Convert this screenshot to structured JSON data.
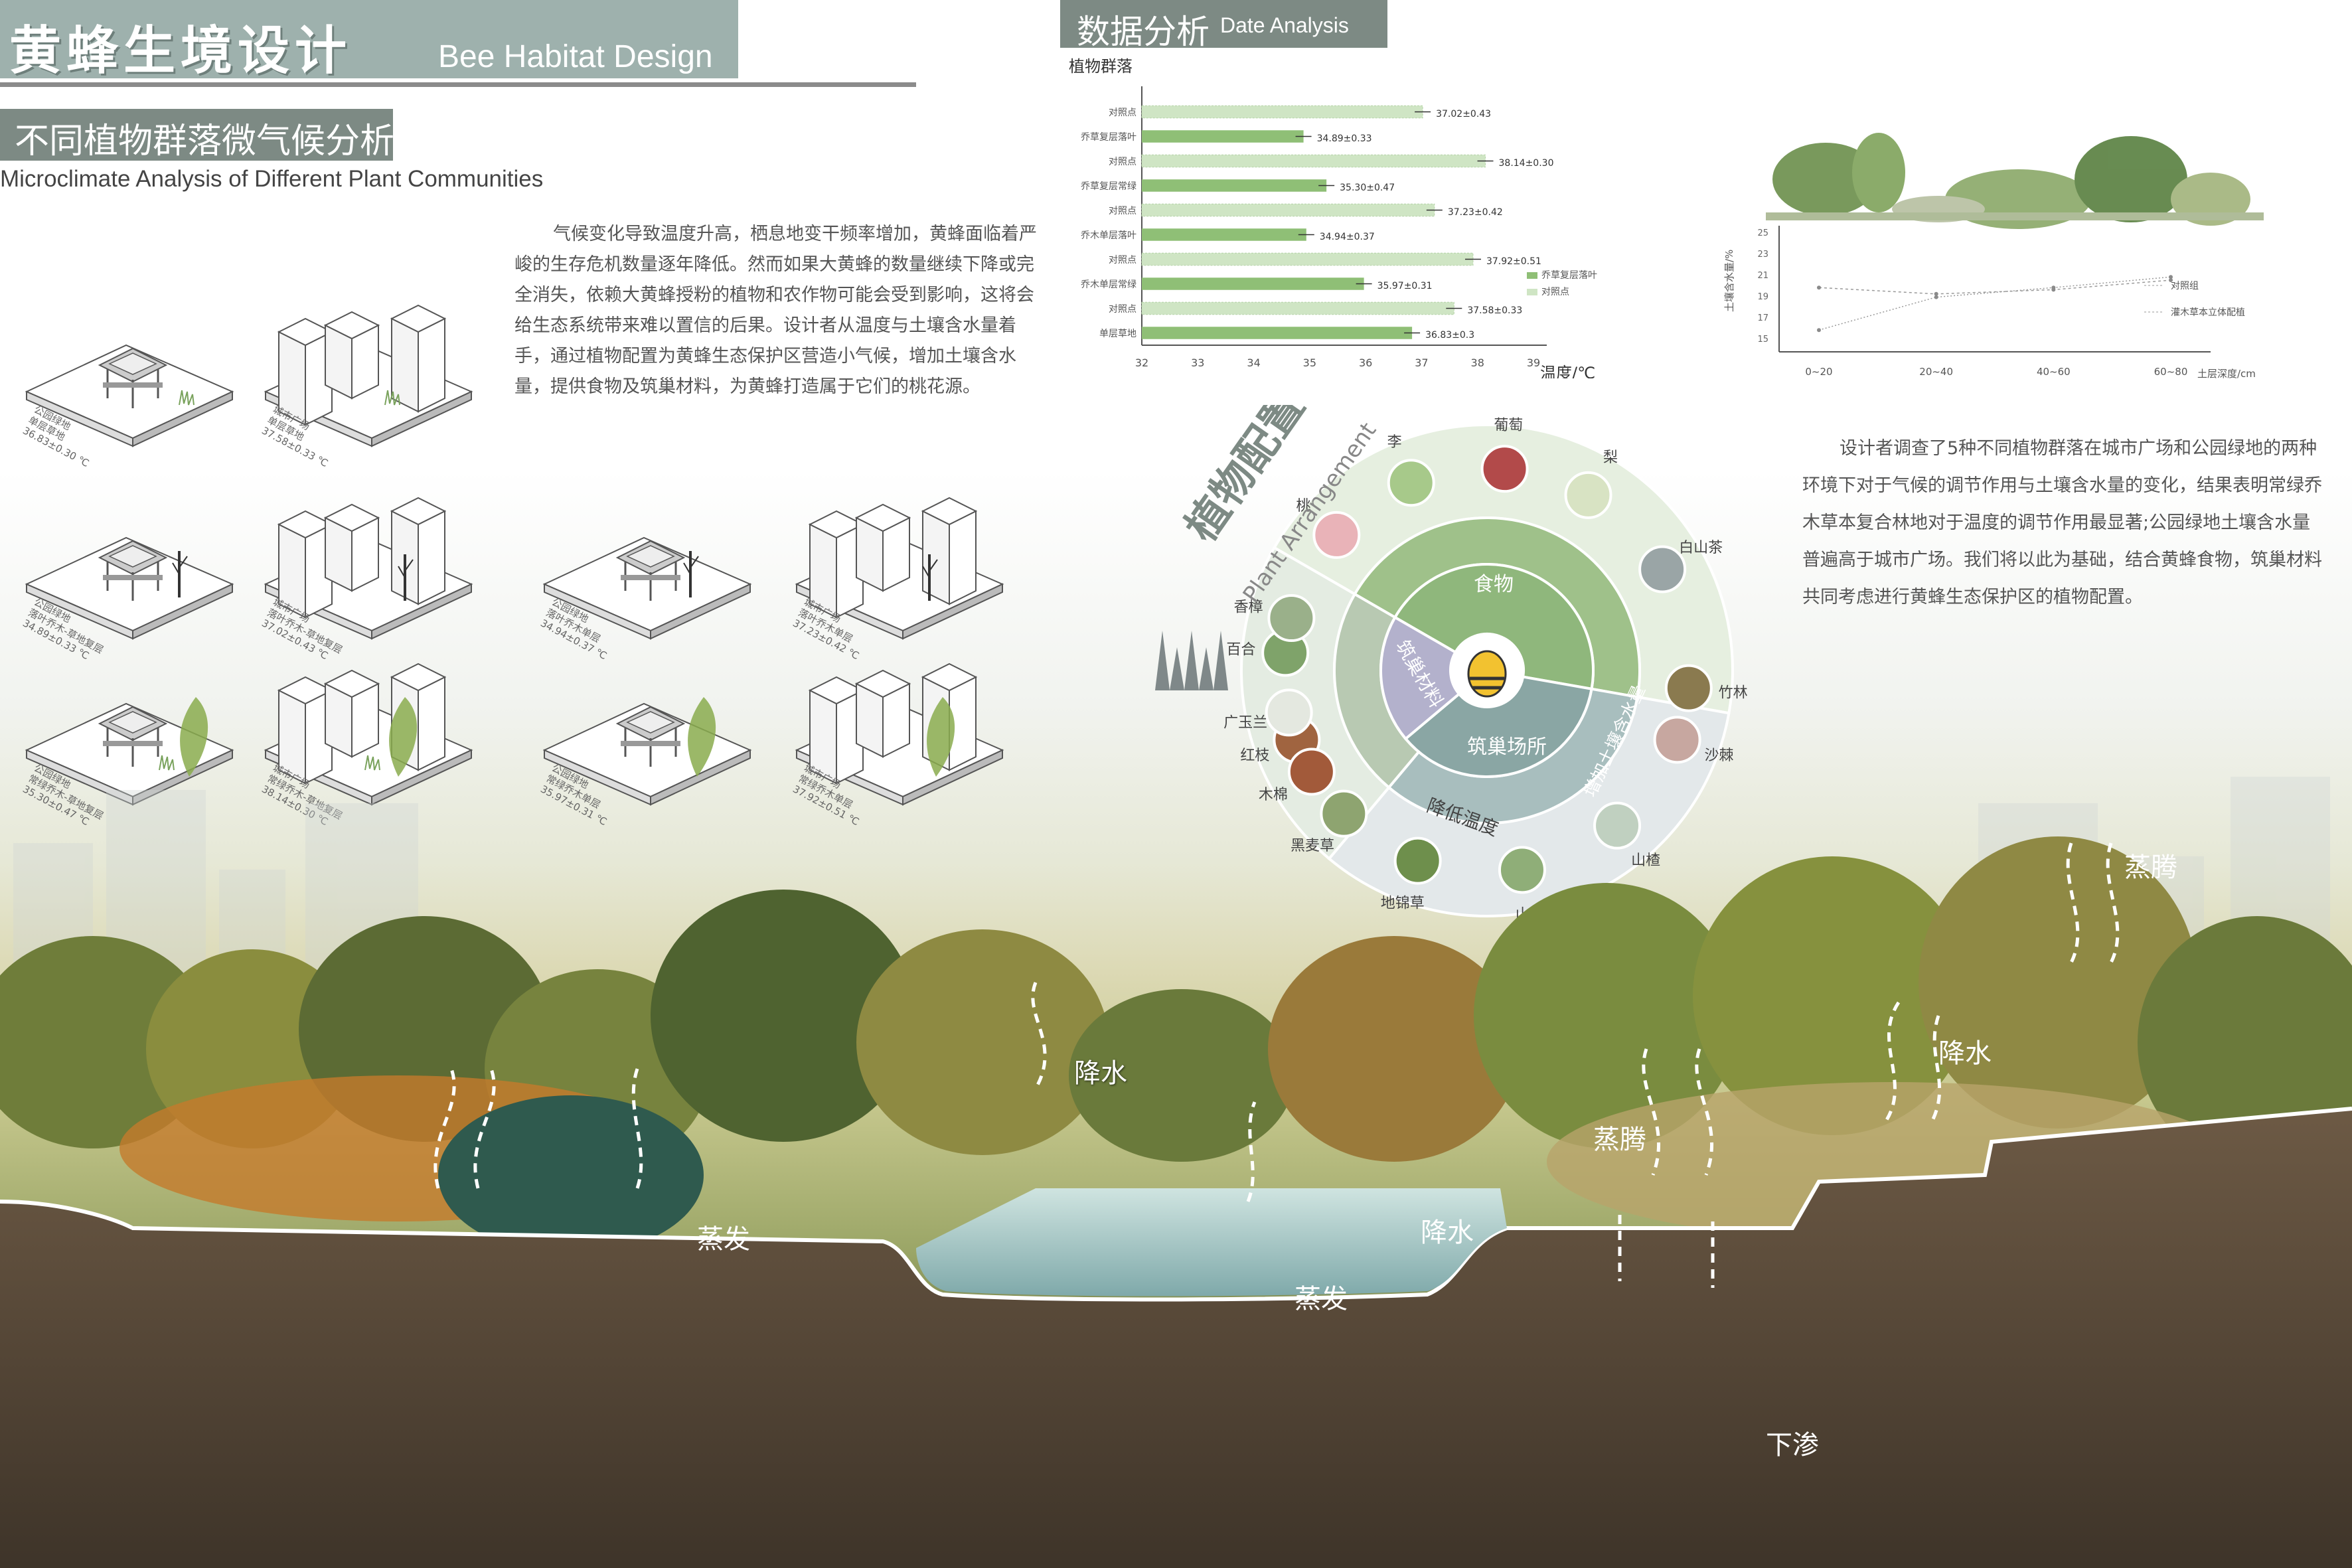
{
  "header": {
    "title_zh": "黄蜂生境设计",
    "title_en": "Bee Habitat Design",
    "subtitle_zh": "不同植物群落微气候分析",
    "subtitle_en": "Microclimate Analysis of Different Plant Communities"
  },
  "intro_text": "气候变化导致温度升高，栖息地变干频率增加，黄蜂面临着严峻的生存危机数量逐年降低。然而如果大黄蜂的数量继续下降或完全消失，依赖大黄蜂授粉的植物和农作物可能会受到影响，这将会给生态系统带来难以置信的后果。设计者从温度与土壤含水量着手，通过植物配置为黄蜂生态保护区营造小气候，增加土壤含水量，提供食物及筑巢材料，为黄蜂打造属于它们的桃花源。",
  "data_section": {
    "title_zh": "数据分析",
    "title_en": "Date Analysis"
  },
  "right_text": "设计者调查了5种不同植物群落在城市广场和公园绿地的两种环境下对于气候的调节作用与土壤含水量的变化，结果表明常绿乔木草本复合林地对于温度的调节作用最显著;公园绿地土壤含水量普遍高于城市广场。我们将以此为基础，结合黄蜂食物，筑巢材料共同考虑进行黄蜂生态保护区的植物配置。",
  "iso_diagrams": [
    {
      "label1": "公园绿地",
      "label2": "单层草地",
      "label3": "36.83±0.30 ℃"
    },
    {
      "label1": "城市广场",
      "label2": "单层草地",
      "label3": "37.58±0.33 ℃"
    },
    {
      "label1": "公园绿地",
      "label2": "落叶乔木-草地复层",
      "label3": "34.89±0.33 ℃"
    },
    {
      "label1": "城市广场",
      "label2": "落叶乔木-草地复层",
      "label3": "37.02±0.43 ℃"
    },
    {
      "label1": "公园绿地",
      "label2": "落叶乔木单层",
      "label3": "34.94±0.37 ℃"
    },
    {
      "label1": "城市广场",
      "label2": "落叶乔木单层",
      "label3": "37.23±0.42 ℃"
    },
    {
      "label1": "公园绿地",
      "label2": "常绿乔木-草地复层",
      "label3": "35.30±0.47 ℃"
    },
    {
      "label1": "城市广场",
      "label2": "常绿乔木-草地复层",
      "label3": "38.14±0.30 ℃"
    },
    {
      "label1": "公园绿地",
      "label2": "常绿乔木单层",
      "label3": "35.97±0.31 ℃"
    },
    {
      "label1": "城市广场",
      "label2": "常绿乔木单层",
      "label3": "37.92±0.51 ℃"
    }
  ],
  "chart_data": [
    {
      "type": "bar",
      "orientation": "horizontal",
      "ylabel": "植物群落",
      "xlabel": "温度/℃",
      "xlim": [
        32,
        39
      ],
      "xticks": [
        32,
        33,
        34,
        35,
        36,
        37,
        38,
        39
      ],
      "categories": [
        "对照点",
        "乔草复层落叶",
        "对照点",
        "乔草复层常绿",
        "对照点",
        "乔木单层落叶",
        "对照点",
        "乔木单层常绿",
        "对照点",
        "单层草地"
      ],
      "values": [
        37.02,
        34.89,
        38.14,
        35.3,
        37.23,
        34.94,
        37.92,
        35.97,
        37.58,
        36.83
      ],
      "labels": [
        "37.02±0.43",
        "34.89±0.33",
        "38.14±0.30",
        "35.30±0.47",
        "37.23±0.42",
        "34.94±0.37",
        "37.92±0.51",
        "35.97±0.31",
        "37.58±0.33",
        "36.83±0.3"
      ],
      "kinds": [
        "control",
        "community",
        "control",
        "community",
        "control",
        "community",
        "control",
        "community",
        "control",
        "community"
      ],
      "legend": [
        "乔草复层落叶",
        "对照点"
      ],
      "legend_position": "right"
    },
    {
      "type": "line",
      "ylabel": "土壤含水量/%",
      "xlabel": "土层深度/cm",
      "categories": [
        "0~20",
        "20~40",
        "40~60",
        "60~80"
      ],
      "ylim": [
        15,
        25
      ],
      "yticks": [
        15,
        17,
        19,
        21,
        23,
        25
      ],
      "series": [
        {
          "name": "对照组",
          "values": [
            19.8,
            19.2,
            19.6,
            20.5
          ]
        },
        {
          "name": "灌木草本立体配植",
          "values": [
            15.8,
            18.9,
            19.8,
            20.8
          ]
        }
      ]
    }
  ],
  "plant_wheel": {
    "title_zh": "植物配置",
    "title_en": "Plant Arrangement",
    "inner": [
      "食物",
      "筑巢材料",
      "筑巢场所"
    ],
    "outer": [
      "增加土壤含水量",
      "降低温度"
    ],
    "plants": [
      "桃",
      "李",
      "葡萄",
      "梨",
      "白山茶",
      "竹林",
      "红枝",
      "百合",
      "沙棘",
      "山楂",
      "山桃",
      "地锦草",
      "黑麦草",
      "木棉",
      "广玉兰",
      "香樟"
    ]
  },
  "landscape_labels": {
    "rain1": "降水",
    "rain2": "降水",
    "rain3": "降水",
    "evap1": "蒸发",
    "evap2": "蒸发",
    "transp1": "蒸腾",
    "transp2": "蒸腾",
    "seep": "下渗"
  },
  "colors": {
    "accent_gray": "#9eb1ad",
    "dark_gray": "#7d8a84",
    "bar_green": "#8fbf76",
    "wheel_green": "#8fb77c",
    "wheel_purple": "#b9b7d0",
    "wheel_teal": "#9fb4b4",
    "water": "#8fb8b9",
    "soil": "#5a4a3b"
  }
}
